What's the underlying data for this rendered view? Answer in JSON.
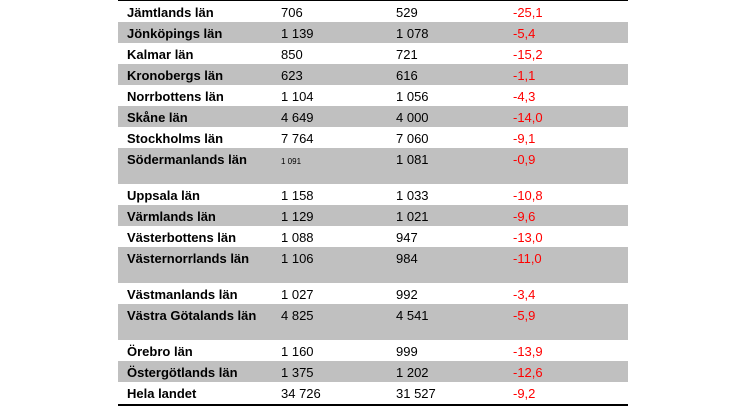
{
  "rows": [
    {
      "name": "Jämtlands län",
      "a": "706",
      "b": "529",
      "c": "-25,1",
      "shaded": false,
      "h": 21
    },
    {
      "name": "Jönköpings län",
      "a": "1 139",
      "b": "1 078",
      "c": "-5,4",
      "shaded": true,
      "h": 21
    },
    {
      "name": "Kalmar län",
      "a": "850",
      "b": "721",
      "c": "-15,2",
      "shaded": false,
      "h": 21
    },
    {
      "name": "Kronobergs län",
      "a": "623",
      "b": "616",
      "c": "-1,1",
      "shaded": true,
      "h": 21
    },
    {
      "name": "Norrbottens län",
      "a": "1 104",
      "b": "1 056",
      "c": "-4,3",
      "shaded": false,
      "h": 21
    },
    {
      "name": "Skåne län",
      "a": "4 649",
      "b": "4 000",
      "c": "-14,0",
      "shaded": true,
      "h": 21
    },
    {
      "name": "Stockholms län",
      "a": "7 764",
      "b": "7 060",
      "c": "-9,1",
      "shaded": false,
      "h": 21
    },
    {
      "name": "Södermanlands län",
      "a": "1 091",
      "b": "1 081",
      "c": "-0,9",
      "shaded": true,
      "h": 36,
      "small_a": true
    },
    {
      "name": "Uppsala län",
      "a": "1 158",
      "b": "1 033",
      "c": "-10,8",
      "shaded": false,
      "h": 21
    },
    {
      "name": "Värmlands län",
      "a": "1 129",
      "b": "1 021",
      "c": "-9,6",
      "shaded": true,
      "h": 21
    },
    {
      "name": "Västerbottens län",
      "a": "1 088",
      "b": "947",
      "c": "-13,0",
      "shaded": false,
      "h": 21
    },
    {
      "name": "Västernorrlands län",
      "a": "1 106",
      "b": "984",
      "c": "-11,0",
      "shaded": true,
      "h": 36
    },
    {
      "name": "Västmanlands län",
      "a": "1 027",
      "b": "992",
      "c": "-3,4",
      "shaded": false,
      "h": 21
    },
    {
      "name": "Västra Götalands län",
      "a": "4 825",
      "b": "4 541",
      "c": "-5,9",
      "shaded": true,
      "h": 36
    },
    {
      "name": "Örebro län",
      "a": "1 160",
      "b": "999",
      "c": "-13,9",
      "shaded": false,
      "h": 21
    },
    {
      "name": "Östergötlands län",
      "a": "1 375",
      "b": "1 202",
      "c": "-12,6",
      "shaded": true,
      "h": 21
    },
    {
      "name": "Hela landet",
      "a": "34 726",
      "b": "31 527",
      "c": "-9,2",
      "shaded": false,
      "h": 21
    }
  ]
}
